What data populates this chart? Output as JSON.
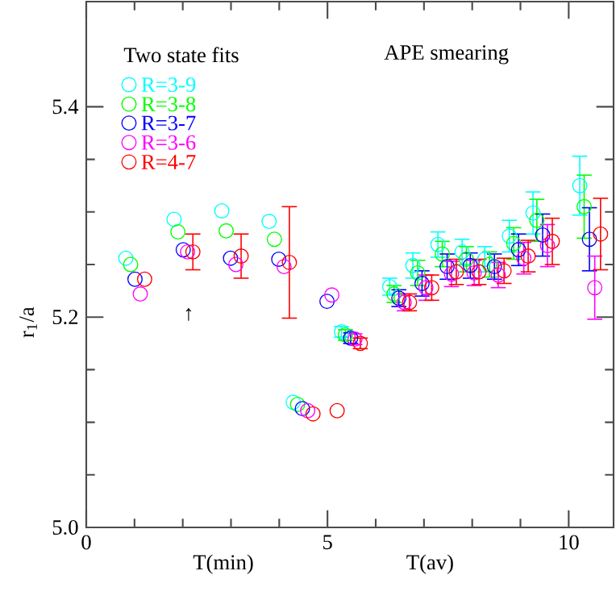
{
  "chart_data": {
    "type": "scatter",
    "ylabel": "r$_{1}$/a",
    "legend_title": "Two state fits",
    "annotations": [
      "APE smearing",
      "T(min)",
      "T(av)",
      "↑"
    ],
    "xlim": [
      0,
      10.93
    ],
    "ylim": [
      5.0,
      5.5
    ],
    "xticks": [
      0,
      5,
      10
    ],
    "yticks": [
      {
        "value": 5.0,
        "label": "5.0"
      },
      {
        "value": 5.2,
        "label": "5.2"
      },
      {
        "value": 5.4,
        "label": "5.4"
      }
    ],
    "legend": "top left",
    "marker": "circle",
    "series": [
      {
        "name": "R=3-9",
        "color": "#00ffff",
        "x": [
          0.82,
          1.82,
          2.81,
          3.79,
          4.29,
          5.29,
          6.29,
          6.77,
          7.29,
          7.79,
          8.26,
          8.77,
          9.26,
          10.23
        ],
        "values": [
          5.256,
          5.293,
          5.301,
          5.291,
          5.119,
          5.186,
          5.229,
          5.249,
          5.269,
          5.262,
          5.255,
          5.277,
          5.299,
          5.325
        ],
        "errors": [
          null,
          null,
          null,
          null,
          null,
          0.005,
          0.008,
          0.012,
          0.012,
          0.012,
          0.012,
          0.015,
          0.02,
          0.028
        ]
      },
      {
        "name": "R=3-8",
        "color": "#00ff00",
        "x": [
          0.92,
          1.9,
          2.9,
          3.9,
          4.38,
          5.37,
          6.38,
          6.87,
          7.38,
          7.88,
          8.36,
          8.86,
          9.34,
          10.32
        ],
        "values": [
          5.25,
          5.281,
          5.282,
          5.274,
          5.117,
          5.183,
          5.222,
          5.242,
          5.26,
          5.255,
          5.25,
          5.27,
          5.292,
          5.305
        ],
        "errors": [
          null,
          null,
          null,
          null,
          null,
          0.005,
          0.008,
          0.012,
          0.012,
          0.012,
          0.012,
          0.015,
          0.02,
          0.03
        ]
      },
      {
        "name": "R=3-7",
        "color": "#0000ff",
        "x": [
          1.01,
          2.01,
          2.99,
          3.99,
          4.48,
          4.99,
          5.48,
          6.48,
          6.96,
          7.48,
          7.96,
          8.46,
          8.96,
          9.46,
          10.43
        ],
        "values": [
          5.236,
          5.264,
          5.256,
          5.255,
          5.113,
          5.215,
          5.18,
          5.218,
          5.232,
          5.248,
          5.249,
          5.248,
          5.264,
          5.278,
          5.274
        ],
        "errors": [
          null,
          null,
          null,
          null,
          null,
          null,
          0.005,
          0.008,
          0.012,
          0.012,
          0.012,
          0.012,
          0.015,
          0.02,
          0.03
        ]
      },
      {
        "name": "R=3-6",
        "color": "#ff00ff",
        "x": [
          1.12,
          2.1,
          3.1,
          4.1,
          4.59,
          5.09,
          5.57,
          6.59,
          7.04,
          7.57,
          8.04,
          8.54,
          9.07,
          9.56,
          10.54
        ],
        "values": [
          5.222,
          5.262,
          5.25,
          5.248,
          5.111,
          5.221,
          5.179,
          5.214,
          5.228,
          5.241,
          5.242,
          5.24,
          5.256,
          5.268,
          5.228
        ],
        "errors": [
          null,
          null,
          null,
          null,
          null,
          null,
          0.005,
          0.008,
          0.012,
          0.012,
          0.012,
          0.012,
          0.015,
          0.02,
          0.03
        ]
      },
      {
        "name": "R=4-7",
        "color": "#ff0000",
        "x": [
          1.21,
          2.21,
          3.21,
          4.21,
          4.7,
          5.2,
          5.68,
          6.7,
          7.16,
          7.67,
          8.14,
          8.66,
          9.16,
          9.66,
          10.66
        ],
        "values": [
          5.236,
          5.262,
          5.258,
          5.252,
          5.108,
          5.111,
          5.175,
          5.214,
          5.228,
          5.243,
          5.243,
          5.244,
          5.258,
          5.272,
          5.279
        ],
        "errors": [
          null,
          0.017,
          0.021,
          0.053,
          null,
          null,
          0.005,
          0.008,
          0.012,
          0.012,
          0.012,
          0.012,
          0.015,
          0.022,
          0.034
        ]
      }
    ]
  }
}
